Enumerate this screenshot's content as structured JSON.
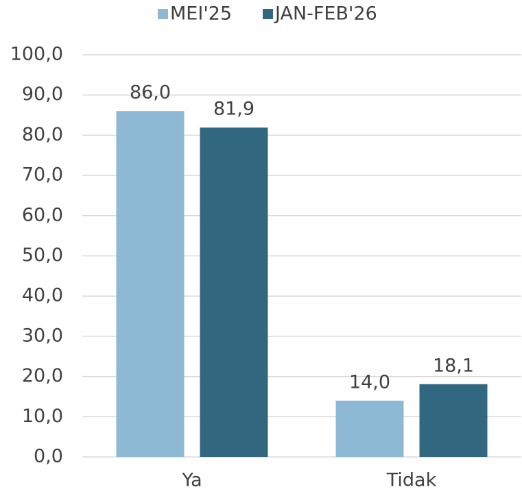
{
  "chart_data": {
    "type": "bar",
    "categories": [
      "Ya",
      "Tidak"
    ],
    "series": [
      {
        "name": "MEI'25",
        "color": "#8db9d4",
        "values": [
          86.0,
          14.0
        ],
        "value_labels": [
          "86,0",
          "14,0"
        ]
      },
      {
        "name": "JAN-FEB'26",
        "color": "#31677f",
        "values": [
          81.9,
          18.1
        ],
        "value_labels": [
          "81,9",
          "18,1"
        ]
      }
    ],
    "ylim": [
      0,
      100
    ],
    "yticks": [
      {
        "value": 0,
        "label": "0,0"
      },
      {
        "value": 10,
        "label": "10,0"
      },
      {
        "value": 20,
        "label": "20,0"
      },
      {
        "value": 30,
        "label": "30,0"
      },
      {
        "value": 40,
        "label": "40,0"
      },
      {
        "value": 50,
        "label": "50,0"
      },
      {
        "value": 60,
        "label": "60,0"
      },
      {
        "value": 70,
        "label": "70,0"
      },
      {
        "value": 80,
        "label": "80,0"
      },
      {
        "value": 90,
        "label": "90,0"
      },
      {
        "value": 100,
        "label": "100,0"
      }
    ],
    "grid": true,
    "legend": "top"
  }
}
